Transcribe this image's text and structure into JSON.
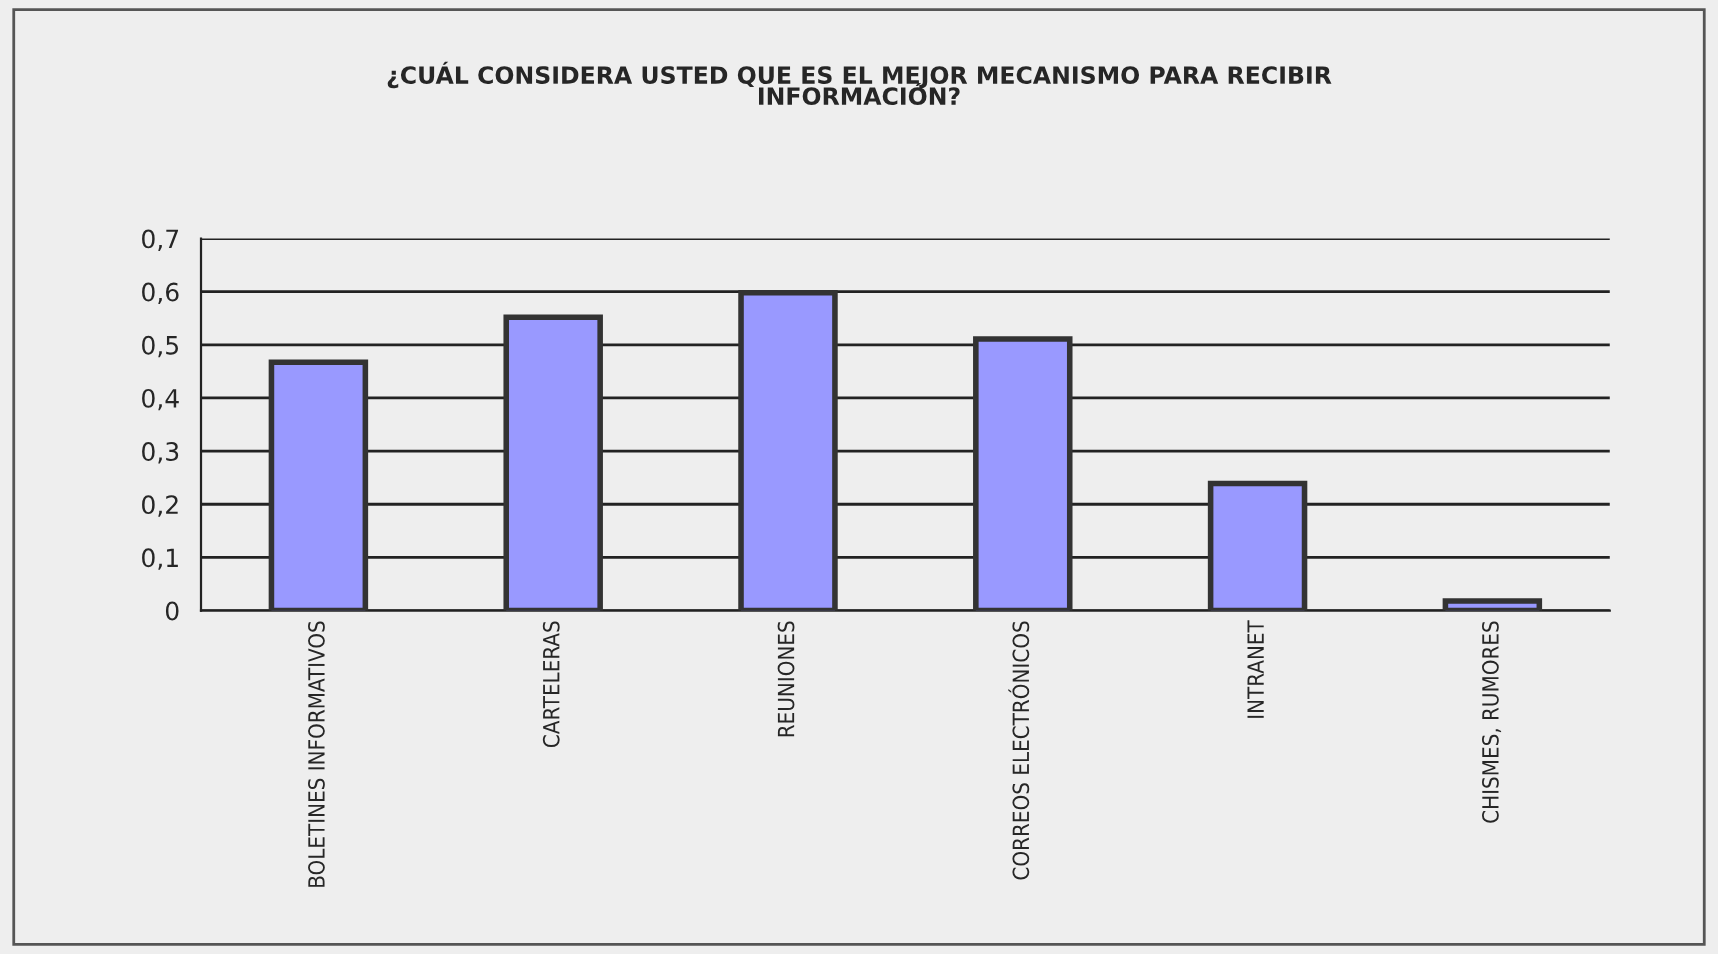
{
  "chart_data": {
    "type": "bar",
    "title": "¿CUÁL CONSIDERA USTED QUE ES EL MEJOR MECANISMO PARA RECIBIR\nINFORMACIÓN?",
    "categories": [
      "BOLETINES INFORMATIVOS",
      "CARTELERAS",
      "REUNIONES",
      "CORREOS ELECTRÓNICOS",
      "INTRANET",
      "CHISMES, RUMORES"
    ],
    "values": [
      0.467,
      0.552,
      0.598,
      0.511,
      0.239,
      0.018
    ],
    "color": "#9999ff",
    "ylim": [
      0,
      0.7
    ],
    "yticks": [
      {
        "value": 0,
        "label": "0"
      },
      {
        "value": 0.1,
        "label": "0,1"
      },
      {
        "value": 0.2,
        "label": "0,2"
      },
      {
        "value": 0.3,
        "label": "0,3"
      },
      {
        "value": 0.4,
        "label": "0,4"
      },
      {
        "value": 0.5,
        "label": "0,5"
      },
      {
        "value": 0.6,
        "label": "0,6"
      },
      {
        "value": 0.7,
        "label": "0,7"
      }
    ],
    "grid": "y"
  }
}
